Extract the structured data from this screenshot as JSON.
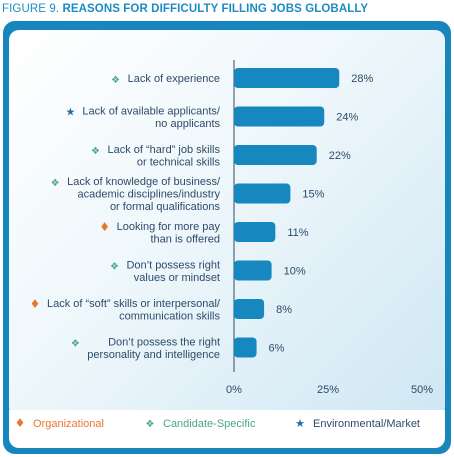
{
  "figure": {
    "label": "FIGURE 9.",
    "title": "REASONS FOR DIFFICULTY FILLING JOBS GLOBALLY"
  },
  "colors": {
    "panel_border": "#1786bd",
    "bar": "#1787c0",
    "text": "#2d4b6b",
    "organizational": "#e8772e",
    "candidate_specific": "#4aa58c",
    "environmental_market": "#1d6fa8",
    "grid": "#2d4b6b"
  },
  "chart_data": {
    "type": "bar",
    "orientation": "horizontal",
    "title": "REASONS FOR DIFFICULTY FILLING JOBS GLOBALLY",
    "categories": [
      "Lack of experience",
      "Lack of available applicants/ no applicants",
      "Lack of “hard” job skills or technical skills",
      "Lack of knowledge of business/ academic disciplines/industry or formal qualifications",
      "Looking for more pay than is offered",
      "Don’t possess right values or mindset",
      "Lack of “soft” skills or interpersonal/ communication skills",
      "Don’t possess the right personality and intelligence"
    ],
    "category_lines": [
      [
        "Lack of experience"
      ],
      [
        "Lack of available applicants/",
        "no applicants"
      ],
      [
        "Lack of “hard” job skills",
        "or technical skills"
      ],
      [
        "Lack of knowledge of business/",
        "academic disciplines/industry",
        "or formal qualifications"
      ],
      [
        "Looking for more pay",
        "than is offered"
      ],
      [
        "Don’t possess right",
        "values or mindset"
      ],
      [
        "Lack of “soft” skills or interpersonal/",
        "communication skills"
      ],
      [
        "Don’t possess the right",
        "personality and intelligence"
      ]
    ],
    "values": [
      28,
      24,
      22,
      15,
      11,
      10,
      8,
      6
    ],
    "value_labels": [
      "28%",
      "24%",
      "22%",
      "15%",
      "11%",
      "10%",
      "8%",
      "6%"
    ],
    "groups": [
      "candidate",
      "environmental",
      "candidate",
      "candidate",
      "organizational",
      "candidate",
      "organizational",
      "candidate"
    ],
    "xlim": [
      0,
      50
    ],
    "x_ticks": [
      0,
      25,
      50
    ],
    "x_tick_labels": [
      "0%",
      "25%",
      "50%"
    ],
    "grid": false
  },
  "legend": {
    "placement": "bottom",
    "items": [
      {
        "group": "organizational",
        "label": "Organizational",
        "symbol": "♦"
      },
      {
        "group": "candidate",
        "label": "Candidate-Specific",
        "symbol": "❖"
      },
      {
        "group": "environmental",
        "label": "Environmental/Market",
        "symbol": "★"
      }
    ]
  }
}
